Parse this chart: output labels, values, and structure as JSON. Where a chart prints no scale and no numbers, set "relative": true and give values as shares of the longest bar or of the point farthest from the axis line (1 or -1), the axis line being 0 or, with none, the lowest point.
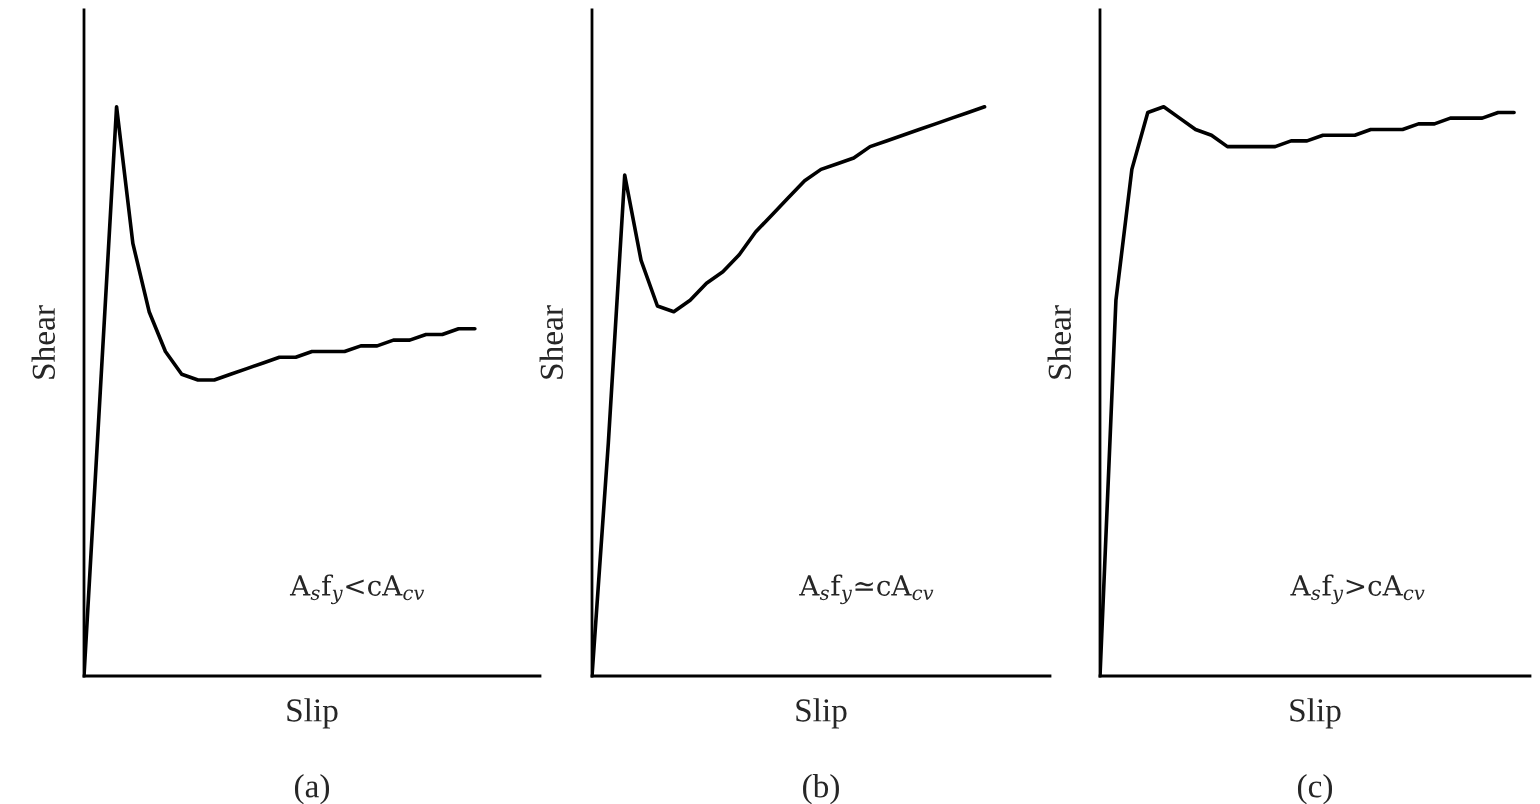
{
  "chart_data": [
    {
      "type": "line",
      "relative": true,
      "xlabel": "Slip",
      "ylabel": "Shear",
      "tick_labels": false,
      "annotations": [
        "A$_{s}$f$_{y}$<cA$_{cv}$",
        "(a)"
      ],
      "categories": [
        null,
        null,
        null,
        null,
        null,
        null,
        null,
        null,
        null,
        null,
        null,
        null,
        null,
        null,
        null,
        null,
        null,
        null,
        null,
        null,
        null,
        null,
        null,
        null,
        null,
        null,
        null,
        null,
        null
      ],
      "series": [
        {
          "color": "#000000",
          "values": [
            0,
            0.5,
            1.0,
            0.76,
            0.64,
            0.57,
            0.53,
            0.52,
            0.52,
            0.53,
            0.54,
            0.55,
            0.56,
            0.56,
            0.57,
            0.57,
            0.57,
            0.58,
            0.58,
            0.59,
            0.59,
            0.6,
            0.6,
            0.61,
            0.61,
            null,
            null,
            null,
            null
          ]
        }
      ]
    },
    {
      "type": "line",
      "relative": true,
      "xlabel": "Slip",
      "ylabel": "Shear",
      "tick_labels": false,
      "annotations": [
        "A$_{s}$f$_{y}$≃cA$_{cv}$",
        "(b)"
      ],
      "categories": [
        null,
        null,
        null,
        null,
        null,
        null,
        null,
        null,
        null,
        null,
        null,
        null,
        null,
        null,
        null,
        null,
        null,
        null,
        null,
        null,
        null,
        null,
        null,
        null,
        null,
        null,
        null,
        null,
        null
      ],
      "series": [
        {
          "color": "#000000",
          "values": [
            0,
            0.41,
            0.88,
            0.73,
            0.65,
            0.64,
            0.66,
            0.69,
            0.71,
            0.74,
            0.78,
            0.81,
            0.84,
            0.87,
            0.89,
            0.9,
            0.91,
            0.93,
            0.94,
            0.95,
            0.96,
            0.97,
            0.98,
            0.99,
            1.0,
            null,
            null,
            null,
            null
          ]
        }
      ]
    },
    {
      "type": "line",
      "relative": true,
      "xlabel": "Slip",
      "ylabel": "Shear",
      "tick_labels": false,
      "annotations": [
        "A$_{s}$f$_{y}$>cA$_{cv}$",
        "(c)"
      ],
      "categories": [
        null,
        null,
        null,
        null,
        null,
        null,
        null,
        null,
        null,
        null,
        null,
        null,
        null,
        null,
        null,
        null,
        null,
        null,
        null,
        null,
        null,
        null,
        null,
        null,
        null,
        null,
        null,
        null
      ],
      "series": [
        {
          "color": "#000000",
          "values": [
            0,
            0.66,
            0.89,
            0.99,
            1.0,
            0.98,
            0.96,
            0.95,
            0.93,
            0.93,
            0.93,
            0.93,
            0.94,
            0.94,
            0.95,
            0.95,
            0.95,
            0.96,
            0.96,
            0.96,
            0.97,
            0.97,
            0.98,
            0.98,
            0.98,
            0.99,
            0.99,
            null
          ]
        }
      ]
    }
  ]
}
